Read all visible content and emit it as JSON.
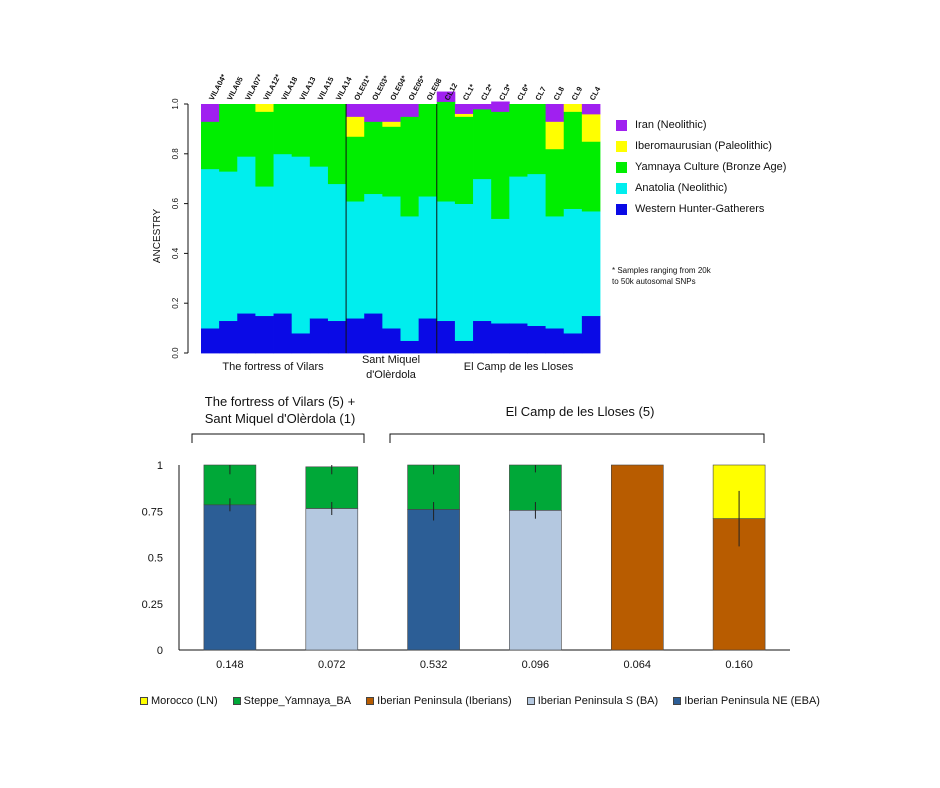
{
  "chart_data": [
    {
      "type": "stacked_bar",
      "ylabel": "ANCESTRY",
      "ylim": [
        0,
        1
      ],
      "yticks": [
        "0.0",
        "0.2",
        "0.4",
        "0.6",
        "0.8",
        "1.0"
      ],
      "groups": [
        {
          "label": "The fortress of Vilars",
          "samples": [
            "VILA04*",
            "VILA05",
            "VILA07*",
            "VILA12*",
            "VILA18",
            "VILA13",
            "VILA15",
            "VILA14"
          ]
        },
        {
          "label": "Sant Miquel d'Olèrdola",
          "label_lines": [
            "Sant Miquel",
            "d'Olèrdola"
          ],
          "samples": [
            "OLE01*",
            "OLE03*",
            "OLE04*",
            "OLE05*",
            "OLE08"
          ]
        },
        {
          "label": "El Camp de les Lloses",
          "samples": [
            "CL12",
            "CL1*",
            "CL2*",
            "CL3*",
            "CL6*",
            "CL7",
            "CL8",
            "CL9",
            "CL4"
          ]
        }
      ],
      "series": [
        {
          "name": "Western Hunter-Gatherers",
          "color": "#0a0ae6",
          "values": [
            0.1,
            0.13,
            0.16,
            0.15,
            0.16,
            0.08,
            0.14,
            0.13,
            0.14,
            0.16,
            0.1,
            0.05,
            0.14,
            0.13,
            0.05,
            0.13,
            0.12,
            0.12,
            0.11,
            0.1,
            0.08,
            0.15
          ]
        },
        {
          "name": "Anatolia (Neolithic)",
          "color": "#00eeee",
          "values": [
            0.64,
            0.6,
            0.63,
            0.52,
            0.64,
            0.71,
            0.61,
            0.55,
            0.47,
            0.48,
            0.53,
            0.5,
            0.49,
            0.48,
            0.55,
            0.57,
            0.42,
            0.59,
            0.61,
            0.45,
            0.5,
            0.42
          ]
        },
        {
          "name": "Yamnaya Culture (Bronze Age)",
          "color": "#00ee00",
          "values": [
            0.19,
            0.27,
            0.21,
            0.3,
            0.2,
            0.21,
            0.25,
            0.32,
            0.26,
            0.29,
            0.28,
            0.4,
            0.37,
            0.4,
            0.35,
            0.28,
            0.43,
            0.29,
            0.28,
            0.27,
            0.39,
            0.28
          ]
        },
        {
          "name": "Iberomaurusian (Paleolithic)",
          "color": "#ffff00",
          "values": [
            0,
            0,
            0,
            0.03,
            0,
            0,
            0,
            0,
            0.08,
            0,
            0.02,
            0,
            0,
            0,
            0.01,
            0,
            0,
            0,
            0,
            0.11,
            0.03,
            0.11
          ]
        },
        {
          "name": "Iran (Neolithic)",
          "color": "#a020f0",
          "values": [
            0.07,
            0,
            0,
            0,
            0,
            0,
            0,
            0,
            0.05,
            0.07,
            0.07,
            0.05,
            0,
            0.04,
            0,
            0.02,
            0.04,
            0,
            0,
            0.07,
            0,
            0.04
          ]
        }
      ],
      "legend": [
        "Iran (Neolithic)",
        "Iberomaurusian (Paleolithic)",
        "Yamnaya Culture (Bronze Age)",
        "Anatolia (Neolithic)",
        "Western Hunter-Gatherers"
      ],
      "note_lines": [
        "* Samples ranging from 20k",
        "to 50k autosomal SNPs"
      ]
    },
    {
      "type": "stacked_bar",
      "ylim": [
        0,
        1
      ],
      "yticks": [
        "0",
        "0.25",
        "0.5",
        "0.75",
        "1"
      ],
      "header_groups": [
        {
          "label_lines": [
            "The fortress of Vilars (5) +",
            "Sant Miquel d'Olèrdola (1)"
          ]
        },
        {
          "label_lines": [
            "El Camp de les Lloses (5)"
          ]
        }
      ],
      "categories": [
        "0.148",
        "0.072",
        "0.532",
        "0.096",
        "0.064",
        "0.160"
      ],
      "bars": [
        {
          "segments": [
            {
              "series": "Iberian Peninsula NE (EBA)",
              "value": 0.785
            },
            {
              "series": "Steppe_Yamnaya_BA",
              "value": 0.215
            }
          ],
          "error_bars": [
            {
              "center": 0.785,
              "low": 0.75,
              "high": 0.82
            },
            {
              "center": 1.0,
              "low": 0.95,
              "high": 1.0
            }
          ]
        },
        {
          "segments": [
            {
              "series": "Iberian Peninsula S (BA)",
              "value": 0.765
            },
            {
              "series": "Steppe_Yamnaya_BA",
              "value": 0.225
            }
          ],
          "error_bars": [
            {
              "center": 0.765,
              "low": 0.73,
              "high": 0.8
            },
            {
              "center": 0.99,
              "low": 0.95,
              "high": 1.0
            }
          ]
        },
        {
          "segments": [
            {
              "series": "Iberian Peninsula NE (EBA)",
              "value": 0.76
            },
            {
              "series": "Steppe_Yamnaya_BA",
              "value": 0.24
            }
          ],
          "error_bars": [
            {
              "center": 0.76,
              "low": 0.7,
              "high": 0.8
            },
            {
              "center": 1.0,
              "low": 0.95,
              "high": 1.0
            }
          ]
        },
        {
          "segments": [
            {
              "series": "Iberian Peninsula S (BA)",
              "value": 0.755
            },
            {
              "series": "Steppe_Yamnaya_BA",
              "value": 0.245
            }
          ],
          "error_bars": [
            {
              "center": 0.755,
              "low": 0.71,
              "high": 0.8
            },
            {
              "center": 1.0,
              "low": 0.96,
              "high": 1.0
            }
          ]
        },
        {
          "segments": [
            {
              "series": "Iberian Peninsula (Iberians)",
              "value": 1.0
            }
          ],
          "error_bars": []
        },
        {
          "segments": [
            {
              "series": "Iberian Peninsula (Iberians)",
              "value": 0.71
            },
            {
              "series": "Morocco (LN)",
              "value": 0.29
            }
          ],
          "error_bars": [
            {
              "center": 0.71,
              "low": 0.56,
              "high": 0.86
            }
          ]
        }
      ],
      "series_colors": {
        "Morocco (LN)": "#ffff00",
        "Steppe_Yamnaya_BA": "#00a838",
        "Iberian Peninsula (Iberians)": "#b85c00",
        "Iberian Peninsula S (BA)": "#b4c8e0",
        "Iberian Peninsula NE (EBA)": "#2c5e96"
      },
      "legend": [
        "Morocco (LN)",
        "Steppe_Yamnaya_BA",
        "Iberian Peninsula (Iberians)",
        "Iberian Peninsula S (BA)",
        "Iberian Peninsula NE (EBA)"
      ]
    }
  ]
}
